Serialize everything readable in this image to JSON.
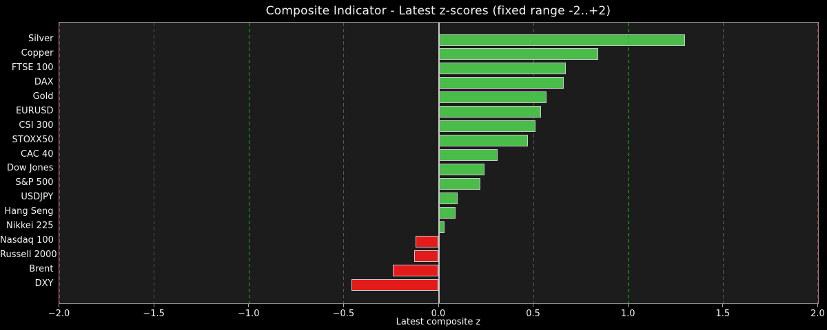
{
  "chart_data": {
    "type": "bar",
    "orientation": "horizontal",
    "title": "Composite Indicator - Latest z-scores (fixed range -2..+2)",
    "xlabel": "Latest composite z",
    "xlim": [
      -2,
      2
    ],
    "grid": true,
    "legend": false,
    "categories": [
      "Silver",
      "Copper",
      "FTSE 100",
      "DAX",
      "Gold",
      "EURUSD",
      "CSI 300",
      "STOXX50",
      "CAC 40",
      "Dow Jones",
      "S&P 500",
      "USDJPY",
      "Hang Seng",
      "Nikkei 225",
      "Nasdaq 100",
      "Russell 2000",
      "Brent",
      "DXY"
    ],
    "values": [
      1.3,
      0.84,
      0.67,
      0.66,
      0.57,
      0.54,
      0.51,
      0.47,
      0.31,
      0.24,
      0.22,
      0.1,
      0.09,
      0.03,
      -0.12,
      -0.13,
      -0.24,
      -0.46
    ],
    "xticks": [
      {
        "value": -2.0,
        "label": "−2.0"
      },
      {
        "value": -1.5,
        "label": "−1.5"
      },
      {
        "value": -1.0,
        "label": "−1.0"
      },
      {
        "value": -0.5,
        "label": "−0.5"
      },
      {
        "value": 0.0,
        "label": "0.0"
      },
      {
        "value": 0.5,
        "label": "0.5"
      },
      {
        "value": 1.0,
        "label": "1.0"
      },
      {
        "value": 1.5,
        "label": "1.5"
      },
      {
        "value": 2.0,
        "label": "2.0"
      }
    ],
    "grid_x": [
      -1.5,
      -0.5,
      0.5,
      1.5
    ],
    "zero_line_x": 0.0,
    "reference_lines": [
      {
        "x": -2.0,
        "color": "#a33434",
        "style": "dashed",
        "name": "lower-bound-line"
      },
      {
        "x": -1.0,
        "color": "#00cc00",
        "style": "dashed",
        "name": "lower-threshold-line"
      },
      {
        "x": 1.0,
        "color": "#00cc00",
        "style": "dashed",
        "name": "upper-threshold-line"
      },
      {
        "x": 2.0,
        "color": "#a33434",
        "style": "dashed",
        "name": "upper-bound-line"
      }
    ],
    "colors": {
      "background": "#000000",
      "plot_background": "#1c1c1c",
      "positive_bar": "#4abc4a",
      "negative_bar": "#e31b1b",
      "bar_edge": "#c9c9c9",
      "zero_line": "#c9c9c9",
      "grid_line": "#585858",
      "frame": "#8a8a8a",
      "tick": "#aaaaaa",
      "text": "#f2f2f2"
    }
  }
}
